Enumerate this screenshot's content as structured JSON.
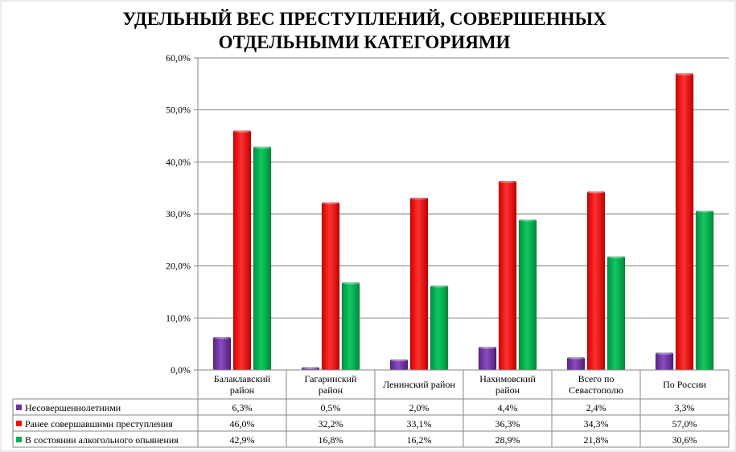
{
  "chart_data": {
    "type": "bar",
    "title_lines": [
      "УДЕЛЬНЫЙ ВЕС ПРЕСТУПЛЕНИЙ, СОВЕРШЕННЫХ",
      "ОТДЕЛЬНЫМИ КАТЕГОРИЯМИ"
    ],
    "categories": [
      [
        "Балаклавский",
        "район"
      ],
      [
        "Гагаринский",
        "район"
      ],
      [
        "Ленинский район"
      ],
      [
        "Нахимовский",
        "район"
      ],
      [
        "Всего по",
        "Севастополю"
      ],
      [
        "По России"
      ]
    ],
    "series": [
      {
        "name": "Несовершеннолетними",
        "color": "#7030a0",
        "values": [
          6.3,
          0.5,
          2.0,
          4.4,
          2.4,
          3.3
        ],
        "labels": [
          "6,3%",
          "0,5%",
          "2,0%",
          "4,4%",
          "2,4%",
          "3,3%"
        ]
      },
      {
        "name": "Ранее совершавшими преступления",
        "color": "#ff0000",
        "values": [
          46.0,
          32.2,
          33.1,
          36.3,
          34.3,
          57.0
        ],
        "labels": [
          "46,0%",
          "32,2%",
          "33,1%",
          "36,3%",
          "34,3%",
          "57,0%"
        ]
      },
      {
        "name": "В состоянии алкогольного опьянения",
        "color": "#00b050",
        "values": [
          42.9,
          16.8,
          16.2,
          28.9,
          21.8,
          30.6
        ],
        "labels": [
          "42,9%",
          "16,8%",
          "16,2%",
          "28,9%",
          "21,8%",
          "30,6%"
        ]
      }
    ],
    "ylim": [
      0,
      60
    ],
    "yticks": [
      0,
      10,
      20,
      30,
      40,
      50,
      60
    ],
    "ytick_labels": [
      "0,0%",
      "10,0%",
      "20,0%",
      "30,0%",
      "40,0%",
      "50,0%",
      "60,0%"
    ],
    "legend": "data-table"
  }
}
